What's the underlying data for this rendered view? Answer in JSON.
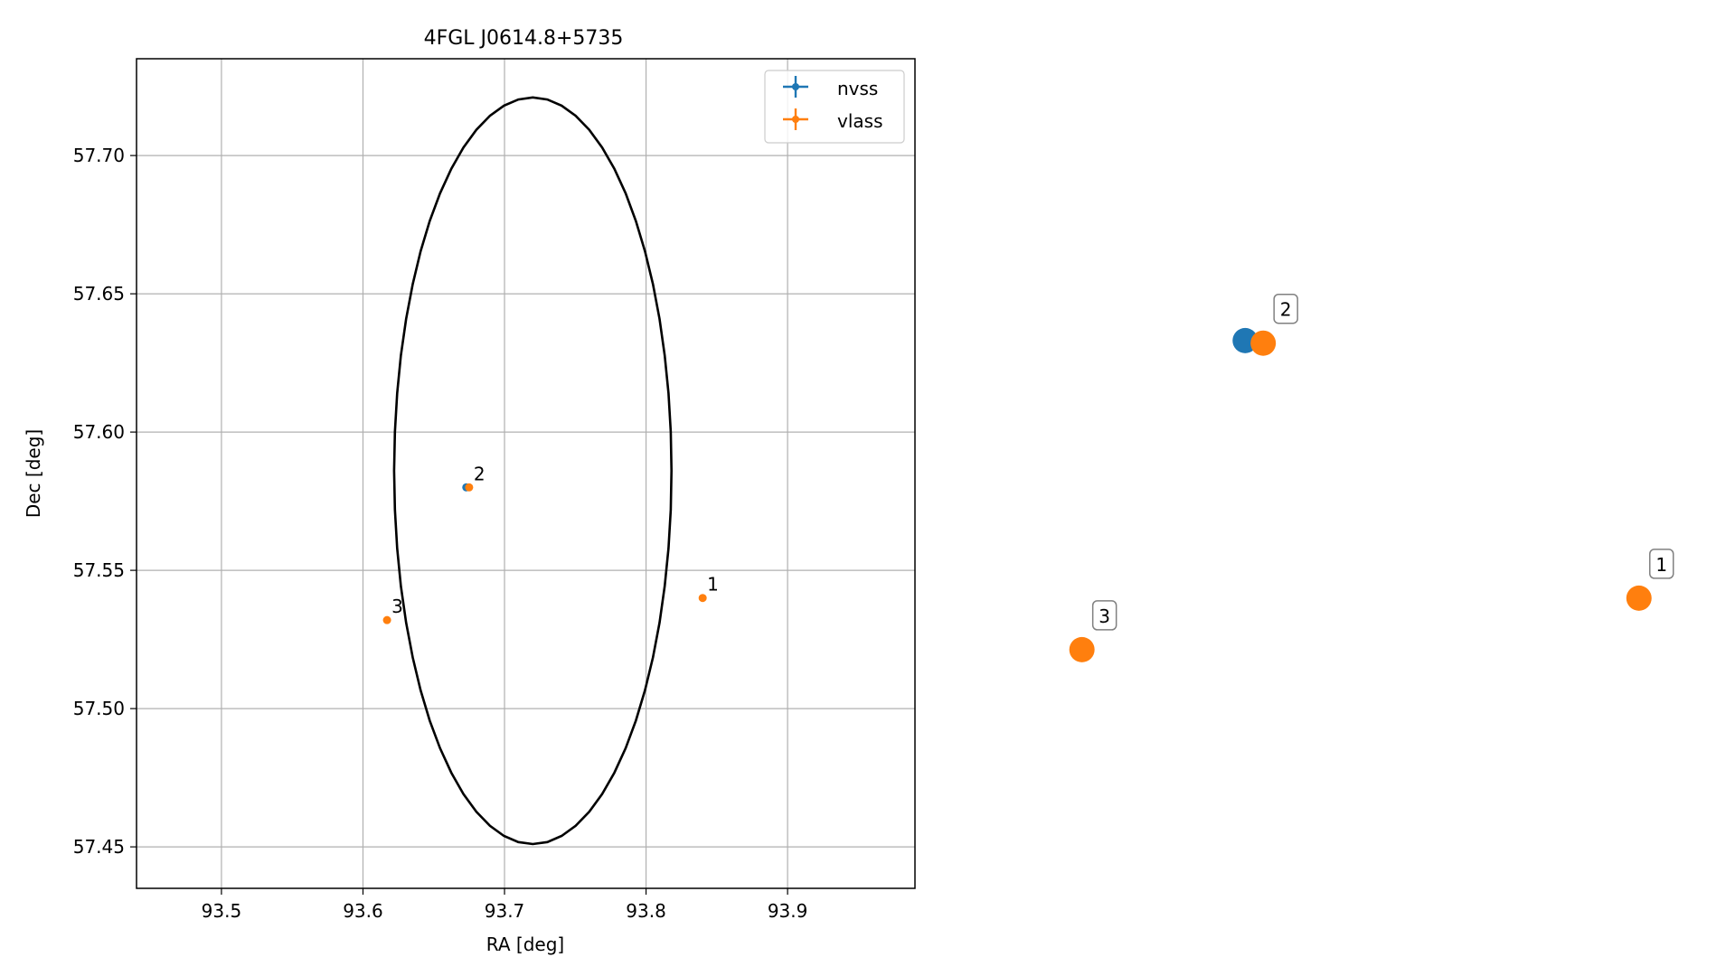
{
  "chart_data": [
    {
      "type": "scatter",
      "title": "4FGL J0614.8+5735",
      "xlabel": "RA [deg]",
      "ylabel": "Dec [deg]",
      "xlim": [
        93.44,
        93.99
      ],
      "ylim": [
        57.435,
        57.735
      ],
      "xticks": [
        93.5,
        93.6,
        93.7,
        93.8,
        93.9
      ],
      "xtick_labels": [
        "93.5",
        "93.6",
        "93.7",
        "93.8",
        "93.9"
      ],
      "yticks": [
        57.45,
        57.5,
        57.55,
        57.6,
        57.65,
        57.7
      ],
      "ytick_labels": [
        "57.45",
        "57.50",
        "57.55",
        "57.60",
        "57.65",
        "57.70"
      ],
      "grid": true,
      "legend_position": "top-right",
      "ellipse": {
        "center": [
          93.72,
          57.586
        ],
        "semi_major": 0.098,
        "semi_minor": 0.135,
        "color": "#000000"
      },
      "series": [
        {
          "name": "nvss",
          "color": "#1f77b4",
          "points": [
            {
              "x": 93.673,
              "y": 57.58,
              "label": ""
            }
          ]
        },
        {
          "name": "vlass",
          "color": "#ff7f0e",
          "points": [
            {
              "x": 93.84,
              "y": 57.54,
              "label": "1"
            },
            {
              "x": 93.675,
              "y": 57.58,
              "label": "2"
            },
            {
              "x": 93.617,
              "y": 57.532,
              "label": "3"
            }
          ]
        }
      ]
    },
    {
      "type": "scatter",
      "title": "",
      "grid": false,
      "axes": false,
      "xlim": [
        93.6,
        93.86
      ],
      "ylim": [
        57.515,
        57.595
      ],
      "series": [
        {
          "name": "nvss",
          "color": "#1f77b4",
          "points": [
            {
              "x": 93.6823,
              "y": 57.58,
              "label": ""
            }
          ]
        },
        {
          "name": "vlass",
          "color": "#ff7f0e",
          "points": [
            {
              "x": 93.84,
              "y": 57.54,
              "label": "1"
            },
            {
              "x": 93.6895,
              "y": 57.5796,
              "label": "2"
            },
            {
              "x": 93.6169,
              "y": 57.532,
              "label": "3"
            }
          ]
        }
      ],
      "links": [
        {
          "from": "nvss",
          "to_label": "2"
        }
      ]
    }
  ]
}
